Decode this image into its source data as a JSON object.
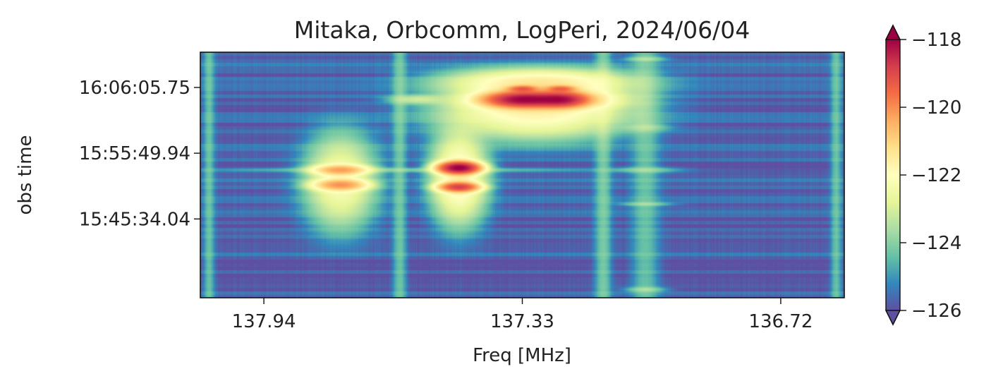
{
  "chart_data": {
    "type": "heatmap",
    "title": "Mitaka, Orbcomm, LogPeri, 2024/06/04",
    "xlabel": "Freq [MHz]",
    "ylabel": "obs time",
    "x_ticks": [
      "137.94",
      "137.33",
      "136.72"
    ],
    "x_tick_values": [
      137.94,
      137.33,
      136.72
    ],
    "xlim": [
      138.09,
      136.57
    ],
    "y_ticks": [
      "16:06:05.75",
      "15:55:49.94",
      "15:45:34.04"
    ],
    "y_tick_seconds_after_start": [
      1970,
      1354,
      738
    ],
    "ylim_seconds": [
      0,
      2300
    ],
    "colorbar": {
      "colormap": "Spectral_r",
      "ticks": [
        "−118",
        "−120",
        "−122",
        "−124",
        "−126"
      ],
      "tick_values": [
        -118,
        -120,
        -122,
        -124,
        -126
      ],
      "range": [
        -126,
        -118
      ],
      "extend": "both"
    },
    "signals": [
      {
        "freq": 137.33,
        "t": 1860,
        "power": -118.2,
        "df": 0.045,
        "dt": 38
      },
      {
        "freq": 137.24,
        "t": 1860,
        "power": -118.4,
        "df": 0.035,
        "dt": 38
      },
      {
        "freq": 137.28,
        "t": 1860,
        "power": -120.8,
        "df": 0.09,
        "dt": 55
      },
      {
        "freq": 137.3,
        "t": 1750,
        "power": -121.8,
        "df": 0.12,
        "dt": 140
      },
      {
        "freq": 137.29,
        "t": 2020,
        "power": -121.6,
        "df": 0.12,
        "dt": 70
      },
      {
        "freq": 137.33,
        "t": 1960,
        "power": -119.6,
        "df": 0.02,
        "dt": 18
      },
      {
        "freq": 137.24,
        "t": 1960,
        "power": -119.8,
        "df": 0.02,
        "dt": 18
      },
      {
        "freq": 137.58,
        "t": 1860,
        "power": -123.5,
        "df": 0.04,
        "dt": 25
      },
      {
        "freq": 137.48,
        "t": 1220,
        "power": -118.0,
        "df": 0.025,
        "dt": 30
      },
      {
        "freq": 137.48,
        "t": 1040,
        "power": -119.0,
        "df": 0.025,
        "dt": 25
      },
      {
        "freq": 137.48,
        "t": 1130,
        "power": -121.7,
        "df": 0.035,
        "dt": 230
      },
      {
        "freq": 137.76,
        "t": 1200,
        "power": -120.5,
        "df": 0.035,
        "dt": 28
      },
      {
        "freq": 137.76,
        "t": 1060,
        "power": -120.3,
        "df": 0.035,
        "dt": 30
      },
      {
        "freq": 137.76,
        "t": 1090,
        "power": -122.3,
        "df": 0.045,
        "dt": 240
      },
      {
        "freq": 137.61,
        "t": 1200,
        "power": -124.6,
        "df": 0.3,
        "dt": 14
      },
      {
        "freq": 137.04,
        "t": 1200,
        "power": -124.6,
        "df": 0.05,
        "dt": 18
      },
      {
        "freq": 137.04,
        "t": 880,
        "power": -124.4,
        "df": 0.04,
        "dt": 12
      },
      {
        "freq": 137.04,
        "t": 1600,
        "power": -124.5,
        "df": 0.035,
        "dt": 25
      },
      {
        "freq": 137.04,
        "t": 2240,
        "power": -124.2,
        "df": 0.03,
        "dt": 15
      },
      {
        "freq": 137.04,
        "t": 80,
        "power": -124.3,
        "df": 0.03,
        "dt": 15
      }
    ],
    "vertical_lines": [
      {
        "freq": 137.14,
        "power": -124.6,
        "df": 0.012
      },
      {
        "freq": 137.04,
        "power": -124.9,
        "df": 0.02
      },
      {
        "freq": 137.62,
        "power": -124.8,
        "df": 0.01
      },
      {
        "freq": 138.07,
        "power": -124.9,
        "df": 0.008
      },
      {
        "freq": 136.59,
        "power": -124.9,
        "df": 0.008
      }
    ],
    "background_power": -125.7
  }
}
